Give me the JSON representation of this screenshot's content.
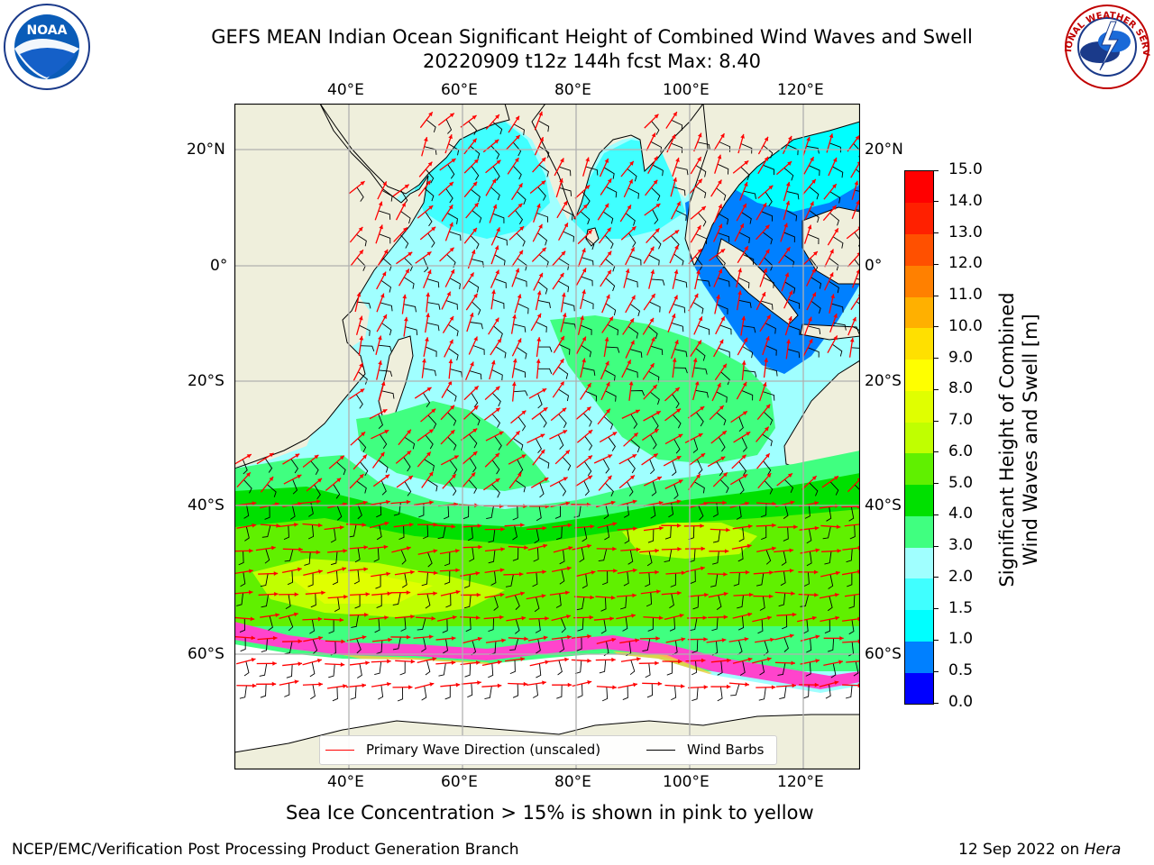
{
  "header": {
    "title_line1": "GEFS MEAN Indian Ocean Significant Height of Combined Wind Waves and Swell",
    "title_line2": "20220909 t12z 144h fcst   Max: 8.40"
  },
  "logos": {
    "noaa_text": "NOAA",
    "nws_text": "NATIONAL WEATHER SERVICE"
  },
  "map": {
    "lon_ticks": [
      "40°E",
      "60°E",
      "80°E",
      "100°E",
      "120°E"
    ],
    "lat_ticks": [
      "20°N",
      "0°",
      "20°S",
      "40°S",
      "60°S"
    ],
    "land_color": "#efefdc",
    "ice_color": "#ff44cc"
  },
  "legend": {
    "wave_dir_label": "Primary Wave Direction (unscaled)",
    "wind_barb_label": "Wind Barbs",
    "wave_dir_color": "#ff0000",
    "wind_barb_color": "#000000"
  },
  "colorbar": {
    "title_line1": "Significant Height of Combined",
    "title_line2": "Wind Waves and Swell [m]",
    "ticks": [
      "0.0",
      "0.5",
      "1.0",
      "1.5",
      "2.0",
      "3.0",
      "4.0",
      "5.0",
      "6.0",
      "7.0",
      "8.0",
      "9.0",
      "10.0",
      "11.0",
      "12.0",
      "13.0",
      "14.0",
      "15.0"
    ],
    "colors": [
      "#0000ff",
      "#0080ff",
      "#00ffff",
      "#40ffff",
      "#a0ffff",
      "#40ff80",
      "#00e000",
      "#60f000",
      "#c0ff00",
      "#e0ff00",
      "#ffff00",
      "#ffe000",
      "#ffb000",
      "#ff8000",
      "#ff5000",
      "#ff2000",
      "#ff0000"
    ]
  },
  "note": "Sea Ice Concentration > 15% is shown in pink to yellow",
  "footer": {
    "left": "NCEP/EMC/Verification Post Processing Product Generation Branch",
    "right_prefix": "12 Sep 2022 on ",
    "right_host": "Hera"
  }
}
